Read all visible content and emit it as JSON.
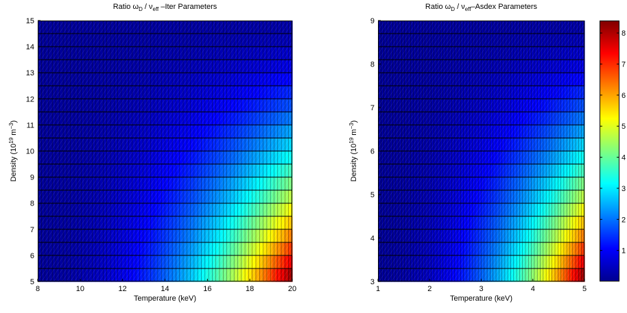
{
  "chart_data": [
    {
      "type": "heatmap",
      "title_prefix": "Ratio ω",
      "title_sub1": "D",
      "title_mid": " / ν",
      "title_sub2": "eff",
      "title_suffix": " –Iter Parameters",
      "xlabel": "Temperature (keV)",
      "ylabel_prefix": "Density (10",
      "ylabel_sup1": "19",
      "ylabel_mid": " m",
      "ylabel_sup2": "−3",
      "ylabel_suffix": ")",
      "xlim": [
        8,
        20
      ],
      "ylim": [
        5,
        15
      ],
      "xticks": [
        "8",
        "10",
        "12",
        "14",
        "16",
        "18",
        "20"
      ],
      "yticks": [
        "5",
        "6",
        "7",
        "8",
        "9",
        "10",
        "11",
        "12",
        "13",
        "14",
        "15"
      ],
      "value_range": [
        0.2,
        8.4
      ],
      "description_of_field": "ratio increases strongly with temperature and decreases with density; maximum ~8.4 at T=20 keV, n=5"
    },
    {
      "type": "heatmap",
      "title_prefix": "Ratio ω",
      "title_sub1": "D",
      "title_mid": " / ν",
      "title_sub2": "eff",
      "title_suffix": "–Asdex Parameters",
      "xlabel": "Temperature (keV)",
      "ylabel_prefix": "Density (10",
      "ylabel_sup1": "19",
      "ylabel_mid": " m",
      "ylabel_sup2": "−3",
      "ylabel_suffix": ")",
      "xlim": [
        1,
        5
      ],
      "ylim": [
        3,
        9
      ],
      "xticks": [
        "1",
        "2",
        "3",
        "4",
        "5"
      ],
      "yticks": [
        "3",
        "4",
        "5",
        "6",
        "7",
        "8",
        "9"
      ],
      "value_range": [
        0.2,
        8.4
      ],
      "description_of_field": "ratio increases strongly with temperature and decreases with density; maximum ~8.4 at T=5 keV, n=3"
    }
  ],
  "colorbar": {
    "colormap": "jet",
    "range": [
      0,
      8.4
    ],
    "ticks": [
      "1",
      "2",
      "3",
      "4",
      "5",
      "6",
      "7",
      "8"
    ]
  }
}
